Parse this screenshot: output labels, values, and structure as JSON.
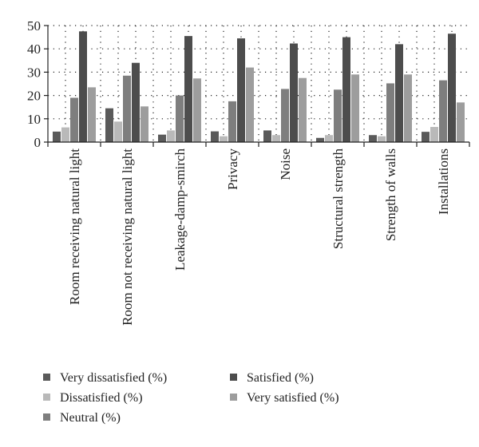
{
  "chart_data": {
    "type": "bar",
    "title": "",
    "xlabel": "",
    "ylabel": "",
    "ylim": [
      0,
      50
    ],
    "yticks": [
      0,
      10,
      20,
      30,
      40,
      50
    ],
    "grid": true,
    "legend_placement": "bottom",
    "categories": [
      "Room receiving natural light",
      "Room not receiving natural light",
      "Leakage-damp-smirch",
      "Privacy",
      "Noise",
      "Structural strength",
      "Strength of walls",
      "Installations"
    ],
    "series": [
      {
        "name": "Very dissatisfied (%)",
        "color": "#5a5a5a",
        "values": [
          4.5,
          14.5,
          3.2,
          4.6,
          5.0,
          1.8,
          3.0,
          4.4
        ]
      },
      {
        "name": "Dissatisfied (%)",
        "color": "#b9b9b9",
        "values": [
          6.3,
          8.8,
          5.0,
          2.5,
          3.0,
          3.0,
          2.5,
          6.5
        ]
      },
      {
        "name": "Neutral (%)",
        "color": "#7e7e7e",
        "values": [
          19.0,
          28.5,
          20.0,
          17.5,
          22.8,
          22.5,
          25.2,
          26.5
        ]
      },
      {
        "name": "Satisfied (%)",
        "color": "#4d4d4d",
        "values": [
          47.5,
          34.0,
          45.5,
          44.5,
          42.3,
          45.0,
          42.0,
          46.5
        ]
      },
      {
        "name": "Very satisfied (%)",
        "color": "#9d9d9d",
        "values": [
          23.5,
          15.3,
          27.3,
          32.0,
          27.5,
          29.0,
          29.0,
          17.0
        ]
      }
    ]
  }
}
